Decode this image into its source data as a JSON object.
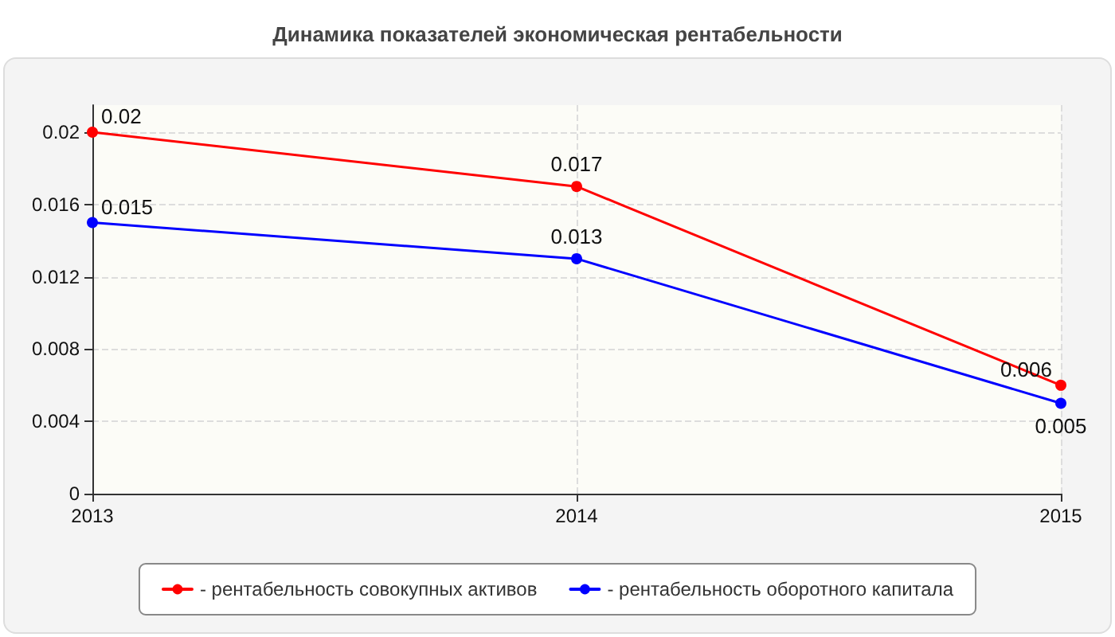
{
  "chart_data": {
    "type": "line",
    "title": "Динамика показателей экономическая рентабельности",
    "categories": [
      "2013",
      "2014",
      "2015"
    ],
    "series": [
      {
        "name": "- рентабельность совокупных активов",
        "color": "#ff0000",
        "values": [
          0.02,
          0.017,
          0.006
        ]
      },
      {
        "name": "- рентабельность оборотного капитала",
        "color": "#0000ff",
        "values": [
          0.015,
          0.013,
          0.005
        ]
      }
    ],
    "ylim": [
      0,
      0.0215
    ],
    "yticks": [
      0,
      0.004,
      0.008,
      0.012,
      0.016,
      0.02
    ],
    "grid": true,
    "legend": "bottom",
    "data_labels": true,
    "marker": "circle",
    "line_style": "solid"
  }
}
